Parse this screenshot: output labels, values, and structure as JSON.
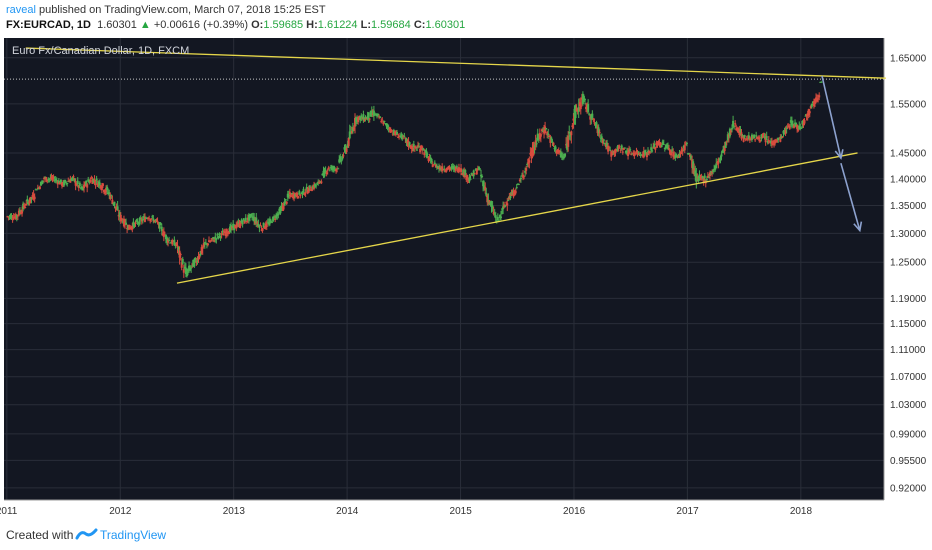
{
  "header": {
    "user": "raveal",
    "published_text": "published on TradingView.com, March 07, 2018 15:25 EST",
    "symbol": "FX:EURCAD, 1D",
    "last": "1.60301",
    "change": "+0.00616 (+0.39%)",
    "open_label": "O:",
    "open": "1.59685",
    "high_label": "H:",
    "high": "1.61224",
    "low_label": "L:",
    "low": "1.59684",
    "close_label": "C:",
    "close": "1.60301"
  },
  "footer": {
    "created_with": "Created with",
    "brand": "TradingView"
  },
  "chart_data": {
    "type": "candlestick",
    "title": "Euro Fx/Canadian Dollar, 1D, FXCM",
    "price_axis_labels": [
      "1.65000",
      "1.55000",
      "1.45000",
      "1.40000",
      "1.35000",
      "1.30000",
      "1.25000",
      "1.19000",
      "1.15000",
      "1.11000",
      "1.07000",
      "1.03000",
      "0.99000",
      "0.95500",
      "0.92000"
    ],
    "x_tick_labels": [
      "2011",
      "2012",
      "2013",
      "2014",
      "2015",
      "2016",
      "2017",
      "2018"
    ],
    "current_price": 1.60301,
    "ohlc_monthly": {
      "x": [
        "2011-01",
        "2011-02",
        "2011-03",
        "2011-04",
        "2011-05",
        "2011-06",
        "2011-07",
        "2011-08",
        "2011-09",
        "2011-10",
        "2011-11",
        "2011-12",
        "2012-01",
        "2012-02",
        "2012-03",
        "2012-04",
        "2012-05",
        "2012-06",
        "2012-07",
        "2012-08",
        "2012-09",
        "2012-10",
        "2012-11",
        "2012-12",
        "2013-01",
        "2013-02",
        "2013-03",
        "2013-04",
        "2013-05",
        "2013-06",
        "2013-07",
        "2013-08",
        "2013-09",
        "2013-10",
        "2013-11",
        "2013-12",
        "2014-01",
        "2014-02",
        "2014-03",
        "2014-04",
        "2014-05",
        "2014-06",
        "2014-07",
        "2014-08",
        "2014-09",
        "2014-10",
        "2014-11",
        "2014-12",
        "2015-01",
        "2015-02",
        "2015-03",
        "2015-04",
        "2015-05",
        "2015-06",
        "2015-07",
        "2015-08",
        "2015-09",
        "2015-10",
        "2015-11",
        "2015-12",
        "2016-01",
        "2016-02",
        "2016-03",
        "2016-04",
        "2016-05",
        "2016-06",
        "2016-07",
        "2016-08",
        "2016-09",
        "2016-10",
        "2016-11",
        "2016-12",
        "2017-01",
        "2017-02",
        "2017-03",
        "2017-04",
        "2017-05",
        "2017-06",
        "2017-07",
        "2017-08",
        "2017-09",
        "2017-10",
        "2017-11",
        "2017-12",
        "2018-01",
        "2018-02",
        "2018-03"
      ],
      "close": [
        1.33,
        1.35,
        1.37,
        1.4,
        1.4,
        1.39,
        1.4,
        1.38,
        1.4,
        1.39,
        1.37,
        1.33,
        1.31,
        1.32,
        1.33,
        1.32,
        1.29,
        1.28,
        1.23,
        1.25,
        1.28,
        1.29,
        1.3,
        1.31,
        1.32,
        1.33,
        1.31,
        1.32,
        1.34,
        1.37,
        1.37,
        1.38,
        1.39,
        1.42,
        1.42,
        1.46,
        1.52,
        1.52,
        1.53,
        1.51,
        1.49,
        1.48,
        1.46,
        1.46,
        1.43,
        1.42,
        1.42,
        1.42,
        1.4,
        1.42,
        1.36,
        1.32,
        1.36,
        1.38,
        1.42,
        1.47,
        1.5,
        1.46,
        1.44,
        1.52,
        1.56,
        1.52,
        1.48,
        1.45,
        1.46,
        1.45,
        1.45,
        1.45,
        1.47,
        1.46,
        1.44,
        1.47,
        1.4,
        1.4,
        1.42,
        1.46,
        1.51,
        1.48,
        1.48,
        1.48,
        1.47,
        1.48,
        1.51,
        1.5,
        1.54,
        1.57,
        1.6
      ],
      "high": [
        1.35,
        1.37,
        1.4,
        1.42,
        1.42,
        1.41,
        1.42,
        1.41,
        1.42,
        1.41,
        1.4,
        1.37,
        1.34,
        1.34,
        1.35,
        1.34,
        1.32,
        1.3,
        1.29,
        1.27,
        1.3,
        1.31,
        1.32,
        1.33,
        1.34,
        1.35,
        1.34,
        1.34,
        1.36,
        1.39,
        1.39,
        1.4,
        1.41,
        1.44,
        1.44,
        1.48,
        1.54,
        1.55,
        1.56,
        1.53,
        1.51,
        1.5,
        1.49,
        1.48,
        1.46,
        1.44,
        1.44,
        1.44,
        1.43,
        1.44,
        1.42,
        1.36,
        1.38,
        1.4,
        1.44,
        1.5,
        1.53,
        1.5,
        1.47,
        1.54,
        1.61,
        1.57,
        1.52,
        1.48,
        1.48,
        1.48,
        1.47,
        1.48,
        1.5,
        1.49,
        1.47,
        1.49,
        1.45,
        1.43,
        1.44,
        1.48,
        1.53,
        1.52,
        1.5,
        1.5,
        1.5,
        1.5,
        1.53,
        1.53,
        1.56,
        1.59,
        1.612
      ],
      "low": [
        1.31,
        1.32,
        1.35,
        1.38,
        1.38,
        1.37,
        1.38,
        1.36,
        1.37,
        1.36,
        1.34,
        1.31,
        1.29,
        1.3,
        1.31,
        1.3,
        1.27,
        1.26,
        1.22,
        1.22,
        1.24,
        1.27,
        1.28,
        1.29,
        1.3,
        1.31,
        1.29,
        1.3,
        1.32,
        1.34,
        1.35,
        1.36,
        1.37,
        1.39,
        1.4,
        1.42,
        1.46,
        1.5,
        1.5,
        1.49,
        1.47,
        1.46,
        1.44,
        1.43,
        1.41,
        1.4,
        1.4,
        1.4,
        1.38,
        1.4,
        1.35,
        1.3,
        1.32,
        1.36,
        1.39,
        1.42,
        1.46,
        1.44,
        1.42,
        1.44,
        1.5,
        1.5,
        1.46,
        1.43,
        1.44,
        1.43,
        1.43,
        1.43,
        1.45,
        1.44,
        1.42,
        1.44,
        1.38,
        1.38,
        1.39,
        1.42,
        1.46,
        1.47,
        1.46,
        1.46,
        1.45,
        1.46,
        1.48,
        1.48,
        1.5,
        1.54,
        1.597
      ],
      "up_color": "#4caf50",
      "down_color": "#d84c3e"
    },
    "drawings": {
      "resistance_line": {
        "from": [
          "2011-03",
          1.672
        ],
        "to": [
          "2018-10",
          1.605
        ],
        "color": "#e5d64a"
      },
      "support_line": {
        "from": [
          "2012-07",
          1.215
        ],
        "to": [
          "2018-07",
          1.45
        ],
        "color": "#e5d64a"
      },
      "forecast_arrows": [
        {
          "from": [
            "2018-03",
            1.61
          ],
          "to": [
            "2018-05",
            1.44
          ]
        },
        {
          "from": [
            "2018-05",
            1.43
          ],
          "to": [
            "2018-07",
            1.305
          ]
        }
      ],
      "arrow_color": "#8da2cf"
    },
    "background": "#131722",
    "grid": true
  }
}
